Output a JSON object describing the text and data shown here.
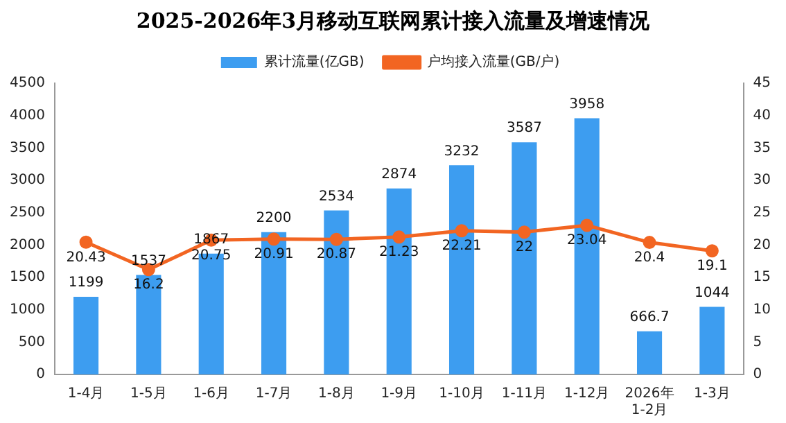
{
  "chart_data": {
    "type": "bar",
    "title": "2025-2026年3月移动互联网累计接入流量及增速情况",
    "categories": [
      "1-4月",
      "1-5月",
      "1-6月",
      "1-7月",
      "1-8月",
      "1-9月",
      "1-10月",
      "1-11月",
      "1-12月",
      "2026年\n1-2月",
      "1-3月"
    ],
    "series": [
      {
        "name": "累计流量(亿GB)",
        "color": "#3d9df0",
        "values": [
          1199,
          1537,
          1867,
          2200,
          2534,
          2874,
          3232,
          3587,
          3958,
          666.7,
          1044
        ]
      },
      {
        "name": "户均接入流量(GB/户)",
        "type": "line",
        "axis": "y2",
        "color": "#f26522",
        "values": [
          20.43,
          16.2,
          20.75,
          20.91,
          20.87,
          21.23,
          22.21,
          22,
          23.04,
          20.4,
          19.1
        ]
      }
    ],
    "ylim": [
      0,
      4500
    ],
    "yticks": [
      0,
      500,
      1000,
      1500,
      2000,
      2500,
      3000,
      3500,
      4000,
      4500
    ],
    "y2lim": [
      0,
      45
    ],
    "y2ticks": [
      0,
      5,
      10,
      15,
      20,
      25,
      30,
      35,
      40,
      45
    ],
    "grid": false,
    "legend": "top",
    "marker": "circle",
    "data_labels": true
  }
}
